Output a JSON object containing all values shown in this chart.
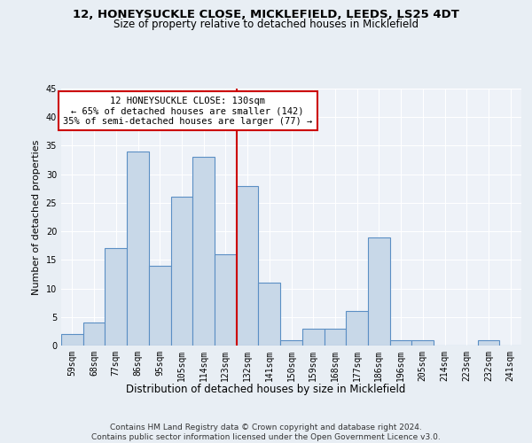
{
  "title": "12, HONEYSUCKLE CLOSE, MICKLEFIELD, LEEDS, LS25 4DT",
  "subtitle": "Size of property relative to detached houses in Micklefield",
  "xlabel": "Distribution of detached houses by size in Micklefield",
  "ylabel": "Number of detached properties",
  "categories": [
    "59sqm",
    "68sqm",
    "77sqm",
    "86sqm",
    "95sqm",
    "105sqm",
    "114sqm",
    "123sqm",
    "132sqm",
    "141sqm",
    "150sqm",
    "159sqm",
    "168sqm",
    "177sqm",
    "186sqm",
    "196sqm",
    "205sqm",
    "214sqm",
    "223sqm",
    "232sqm",
    "241sqm"
  ],
  "values": [
    2,
    4,
    17,
    34,
    14,
    26,
    33,
    16,
    28,
    11,
    1,
    3,
    3,
    6,
    19,
    1,
    1,
    0,
    0,
    1,
    0
  ],
  "bar_color": "#c8d8e8",
  "bar_edge_color": "#5b8fc4",
  "annotation_text": "12 HONEYSUCKLE CLOSE: 130sqm\n← 65% of detached houses are smaller (142)\n35% of semi-detached houses are larger (77) →",
  "annotation_box_color": "#ffffff",
  "annotation_box_edge": "#cc0000",
  "highlight_line_color": "#cc0000",
  "ylim": [
    0,
    45
  ],
  "yticks": [
    0,
    5,
    10,
    15,
    20,
    25,
    30,
    35,
    40,
    45
  ],
  "footer": "Contains HM Land Registry data © Crown copyright and database right 2024.\nContains public sector information licensed under the Open Government Licence v3.0.",
  "bg_color": "#e8eef4",
  "plot_bg_color": "#eef2f8"
}
